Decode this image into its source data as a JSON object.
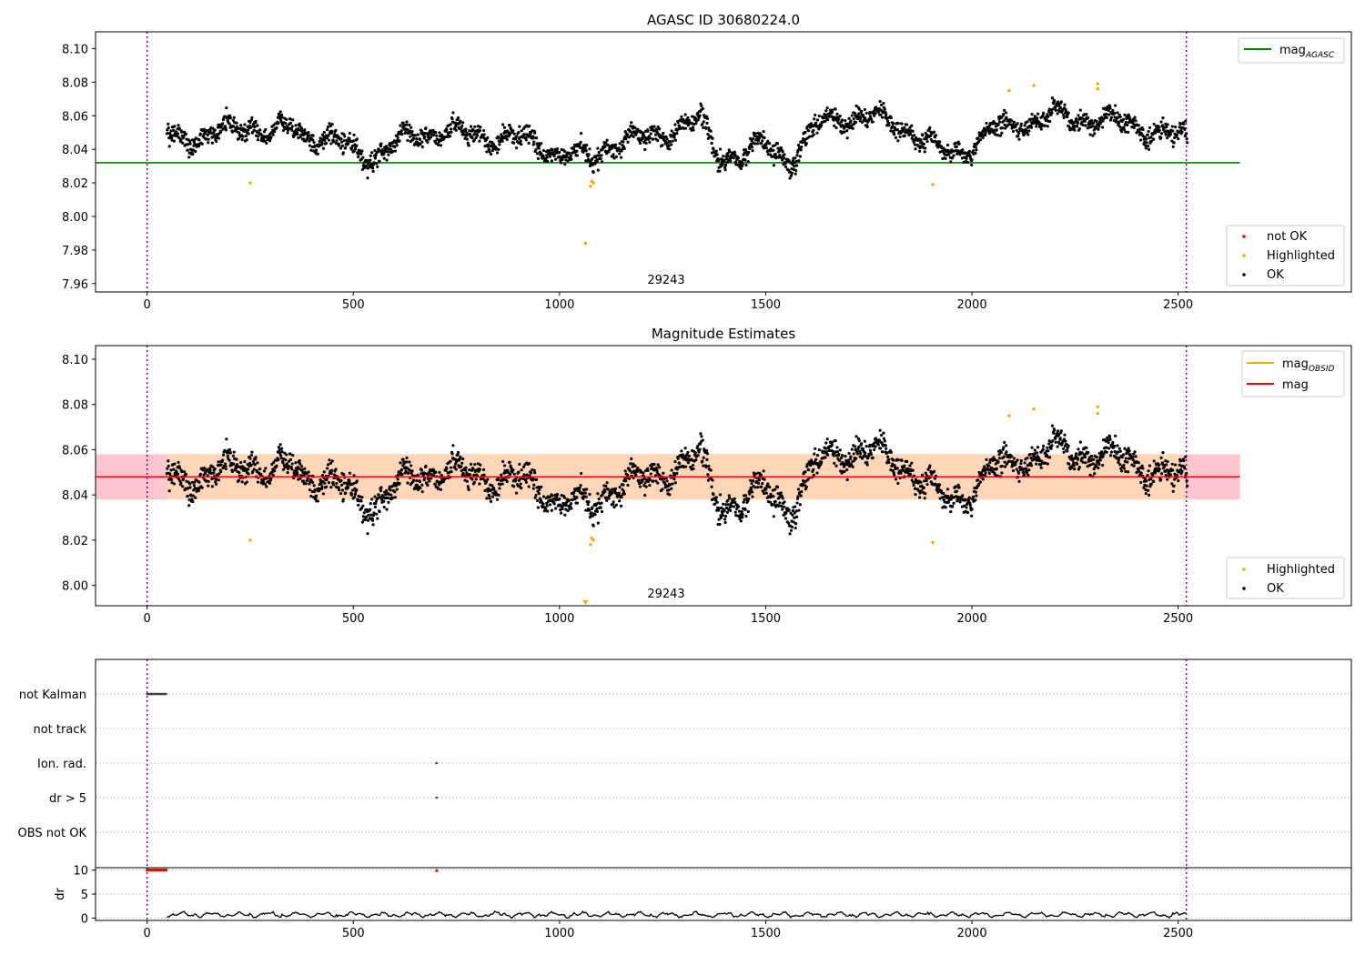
{
  "chart_data": [
    {
      "type": "scatter",
      "title": "AGASC ID 30680224.0",
      "annotation": "29243",
      "xlim": [
        -125,
        2920
      ],
      "ylim": [
        7.955,
        8.11
      ],
      "xticks": [
        0,
        500,
        1000,
        1500,
        2000,
        2500
      ],
      "yticks": [
        7.96,
        7.98,
        8.0,
        8.02,
        8.04,
        8.06,
        8.08,
        8.1
      ],
      "grid": false,
      "vlines": [
        0,
        2520
      ],
      "hlines": [
        {
          "name": "mag_AGASC",
          "y": 8.032,
          "x_range": [
            -125,
            2650
          ],
          "color": "#008000"
        }
      ],
      "legend_lines": [
        {
          "text": "mag",
          "sub": "AGASC",
          "color": "#008000"
        }
      ],
      "legend_points": [
        {
          "text": "not OK",
          "color": "#ff0000"
        },
        {
          "text": "Highlighted",
          "color": "#ffa500"
        },
        {
          "text": "OK",
          "color": "#000000"
        }
      ],
      "highlighted_points": [
        [
          250,
          8.02
        ],
        [
          1063,
          7.984
        ],
        [
          1075,
          8.018
        ],
        [
          1078,
          8.021
        ],
        [
          1082,
          8.02
        ],
        [
          1905,
          8.019
        ],
        [
          2090,
          8.075
        ],
        [
          2150,
          8.078
        ],
        [
          2305,
          8.079
        ],
        [
          2305,
          8.076
        ]
      ],
      "ok_series": {
        "name": "OK",
        "x_range": [
          48,
          2522
        ],
        "count": 2400,
        "trend": [
          [
            48,
            8.048
          ],
          [
            150,
            8.047
          ],
          [
            250,
            8.055
          ],
          [
            300,
            8.048
          ],
          [
            350,
            8.053
          ],
          [
            420,
            8.047
          ],
          [
            500,
            8.04
          ],
          [
            550,
            8.036
          ],
          [
            620,
            8.045
          ],
          [
            680,
            8.051
          ],
          [
            760,
            8.049
          ],
          [
            850,
            8.047
          ],
          [
            950,
            8.044
          ],
          [
            1000,
            8.037
          ],
          [
            1080,
            8.034
          ],
          [
            1120,
            8.044
          ],
          [
            1200,
            8.046
          ],
          [
            1280,
            8.052
          ],
          [
            1340,
            8.056
          ],
          [
            1380,
            8.038
          ],
          [
            1450,
            8.036
          ],
          [
            1500,
            8.042
          ],
          [
            1560,
            8.034
          ],
          [
            1600,
            8.046
          ],
          [
            1650,
            8.058
          ],
          [
            1720,
            8.06
          ],
          [
            1800,
            8.057
          ],
          [
            1860,
            8.05
          ],
          [
            1920,
            8.038
          ],
          [
            2000,
            8.042
          ],
          [
            2050,
            8.05
          ],
          [
            2120,
            8.056
          ],
          [
            2200,
            8.06
          ],
          [
            2300,
            8.058
          ],
          [
            2400,
            8.054
          ],
          [
            2522,
            8.045
          ]
        ],
        "scatter": 0.0065
      }
    },
    {
      "type": "scatter",
      "title": "Magnitude Estimates",
      "annotation": "29243",
      "xlim": [
        -125,
        2920
      ],
      "ylim": [
        7.991,
        8.106
      ],
      "xticks": [
        0,
        500,
        1000,
        1500,
        2000,
        2500
      ],
      "yticks": [
        8.0,
        8.02,
        8.04,
        8.06,
        8.08,
        8.1
      ],
      "grid": false,
      "vlines": [
        0,
        2520
      ],
      "hlines": [
        {
          "name": "mag",
          "y": 8.048,
          "x_range": [
            -125,
            2650
          ],
          "color": "#ff0000"
        }
      ],
      "bands": [
        {
          "y0": 8.038,
          "y1": 8.058,
          "x_range": [
            -125,
            2650
          ],
          "color": "#ffc0cb"
        },
        {
          "y0": 8.038,
          "y1": 8.058,
          "x_range": [
            48,
            2522
          ],
          "color": "#ffd7b5"
        }
      ],
      "orange_segment": {
        "name": "mag_OBSID",
        "y": 8.048,
        "x_range": [
          48,
          2522
        ],
        "color": "#ffa500"
      },
      "legend_lines": [
        {
          "text": "mag",
          "sub": "OBSID",
          "color": "#ffa500"
        },
        {
          "text": "mag",
          "sub": "",
          "color": "#ff0000"
        }
      ],
      "legend_points": [
        {
          "text": "Highlighted",
          "color": "#ffa500"
        },
        {
          "text": "OK",
          "color": "#000000"
        }
      ],
      "highlighted_points": [
        [
          250,
          8.02
        ],
        [
          1075,
          8.018
        ],
        [
          1078,
          8.021
        ],
        [
          1082,
          8.02
        ],
        [
          1905,
          8.019
        ],
        [
          2090,
          8.075
        ],
        [
          2150,
          8.078
        ],
        [
          2305,
          8.079
        ],
        [
          2305,
          8.076
        ]
      ],
      "clipped_markers": [
        [
          1063,
          7.991
        ]
      ]
    },
    {
      "type": "scatter",
      "title": "",
      "xlim": [
        -125,
        2920
      ],
      "flag_rows": [
        {
          "label": "not Kalman",
          "points": [
            [
              0,
              48
            ]
          ]
        },
        {
          "label": "not track",
          "points": []
        },
        {
          "label": "Ion. rad.",
          "points": [
            [
              702,
              702
            ]
          ]
        },
        {
          "label": "dr > 5",
          "points": [
            [
              702,
              702
            ]
          ]
        },
        {
          "label": "OBS not OK",
          "points": []
        }
      ],
      "vlines": [
        0,
        2520
      ],
      "grid": true
    },
    {
      "type": "line",
      "title": "",
      "ylabel": "dr",
      "xlim": [
        -125,
        2920
      ],
      "ylim": [
        -0.5,
        10.5
      ],
      "xticks": [
        0,
        500,
        1000,
        1500,
        2000,
        2500
      ],
      "yticks": [
        0,
        5,
        10
      ],
      "grid": true,
      "vlines": [
        0,
        2520
      ],
      "clipped_points": [
        [
          0,
          48
        ],
        [
          702,
          702
        ]
      ],
      "dr_series": {
        "x_range": [
          48,
          2522
        ],
        "mean": 0.7,
        "amplitude": 0.55
      }
    }
  ]
}
